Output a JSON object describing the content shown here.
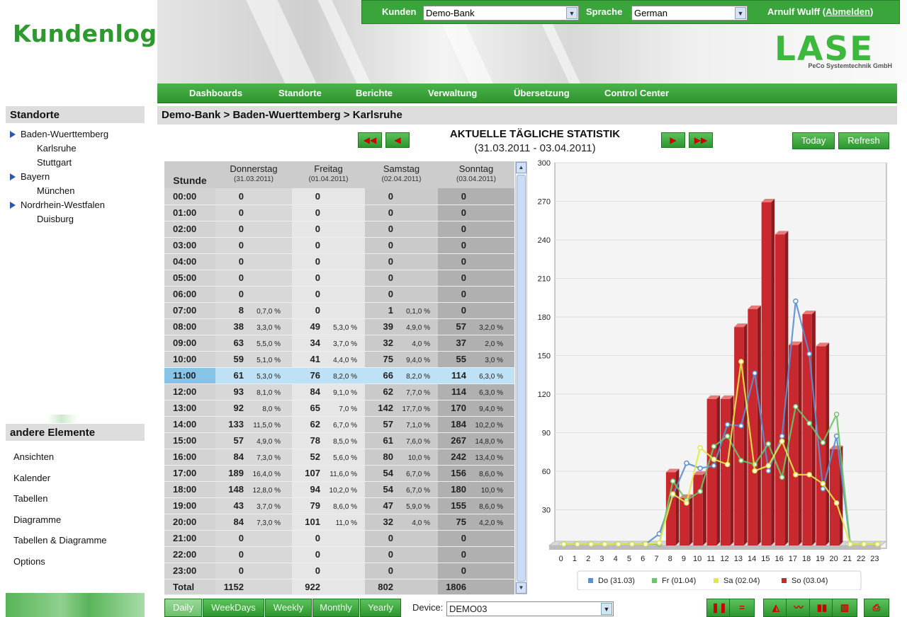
{
  "header": {
    "logo_text": "Kundenlogo",
    "brand": "LASE",
    "brand_sub": "PeCo Systemtechnik GmbH",
    "kunden_label": "Kunden",
    "kunden_value": "Demo-Bank",
    "sprache_label": "Sprache",
    "sprache_value": "German",
    "user_name": "Arnulf Wulff",
    "logout_label": "Abmelden",
    "paren_open": "(",
    "paren_close": ")"
  },
  "nav": [
    "Dashboards",
    "Standorte",
    "Berichte",
    "Verwaltung",
    "Übersetzung",
    "Control Center"
  ],
  "sidebar": {
    "standorte_title": "Standorte",
    "tree": [
      {
        "label": "Baden-Wuerttemberg",
        "level": 1
      },
      {
        "label": "Karlsruhe",
        "level": 2
      },
      {
        "label": "Stuttgart",
        "level": 2
      },
      {
        "label": "Bayern",
        "level": 1
      },
      {
        "label": "München",
        "level": 2
      },
      {
        "label": "Nordrhein-Westfalen",
        "level": 1
      },
      {
        "label": "Duisburg",
        "level": 2
      }
    ],
    "other_title": "andere Elemente",
    "other_items": [
      "Ansichten",
      "Kalender",
      "Tabellen",
      "Diagramme",
      "Tabellen & Diagramme",
      "Options"
    ]
  },
  "breadcrumb": "Demo-Bank > Baden-Wuerttemberg > Karlsruhe",
  "stats": {
    "title": "AKTUELLE TÄGLICHE STATISTIK",
    "subtitle": "(31.03.2011 - 03.04.2011)",
    "today_label": "Today",
    "refresh_label": "Refresh",
    "hour_header": "Stunde",
    "days": [
      {
        "name": "Donnerstag",
        "date": "(31.03.2011)"
      },
      {
        "name": "Freitag",
        "date": "(01.04.2011)"
      },
      {
        "name": "Samstag",
        "date": "(02.04.2011)"
      },
      {
        "name": "Sonntag",
        "date": "(03.04.2011)"
      }
    ],
    "selected_row": 11,
    "rows": [
      {
        "h": "00:00",
        "c": [
          [
            "0",
            ""
          ],
          [
            "0",
            ""
          ],
          [
            "0",
            ""
          ],
          [
            "0",
            ""
          ]
        ]
      },
      {
        "h": "01:00",
        "c": [
          [
            "0",
            ""
          ],
          [
            "0",
            ""
          ],
          [
            "0",
            ""
          ],
          [
            "0",
            ""
          ]
        ]
      },
      {
        "h": "02:00",
        "c": [
          [
            "0",
            ""
          ],
          [
            "0",
            ""
          ],
          [
            "0",
            ""
          ],
          [
            "0",
            ""
          ]
        ]
      },
      {
        "h": "03:00",
        "c": [
          [
            "0",
            ""
          ],
          [
            "0",
            ""
          ],
          [
            "0",
            ""
          ],
          [
            "0",
            ""
          ]
        ]
      },
      {
        "h": "04:00",
        "c": [
          [
            "0",
            ""
          ],
          [
            "0",
            ""
          ],
          [
            "0",
            ""
          ],
          [
            "0",
            ""
          ]
        ]
      },
      {
        "h": "05:00",
        "c": [
          [
            "0",
            ""
          ],
          [
            "0",
            ""
          ],
          [
            "0",
            ""
          ],
          [
            "0",
            ""
          ]
        ]
      },
      {
        "h": "06:00",
        "c": [
          [
            "0",
            ""
          ],
          [
            "0",
            ""
          ],
          [
            "0",
            ""
          ],
          [
            "0",
            ""
          ]
        ]
      },
      {
        "h": "07:00",
        "c": [
          [
            "8",
            "0,7,0 %"
          ],
          [
            "0",
            ""
          ],
          [
            "1",
            "0,1,0 %"
          ],
          [
            "0",
            ""
          ]
        ]
      },
      {
        "h": "08:00",
        "c": [
          [
            "38",
            "3,3,0 %"
          ],
          [
            "49",
            "5,3,0 %"
          ],
          [
            "39",
            "4,9,0 %"
          ],
          [
            "57",
            "3,2,0 %"
          ]
        ]
      },
      {
        "h": "09:00",
        "c": [
          [
            "63",
            "5,5,0 %"
          ],
          [
            "34",
            "3,7,0 %"
          ],
          [
            "32",
            "4,0 %"
          ],
          [
            "37",
            "2,0 %"
          ]
        ]
      },
      {
        "h": "10:00",
        "c": [
          [
            "59",
            "5,1,0 %"
          ],
          [
            "41",
            "4,4,0 %"
          ],
          [
            "75",
            "9,4,0 %"
          ],
          [
            "55",
            "3,0 %"
          ]
        ]
      },
      {
        "h": "11:00",
        "c": [
          [
            "61",
            "5,3,0 %"
          ],
          [
            "76",
            "8,2,0 %"
          ],
          [
            "66",
            "8,2,0 %"
          ],
          [
            "114",
            "6,3,0 %"
          ]
        ]
      },
      {
        "h": "12:00",
        "c": [
          [
            "93",
            "8,1,0 %"
          ],
          [
            "84",
            "9,1,0 %"
          ],
          [
            "62",
            "7,7,0 %"
          ],
          [
            "114",
            "6,3,0 %"
          ]
        ]
      },
      {
        "h": "13:00",
        "c": [
          [
            "92",
            "8,0 %"
          ],
          [
            "65",
            "7,0 %"
          ],
          [
            "142",
            "17,7,0 %"
          ],
          [
            "170",
            "9,4,0 %"
          ]
        ]
      },
      {
        "h": "14:00",
        "c": [
          [
            "133",
            "11,5,0 %"
          ],
          [
            "62",
            "6,7,0 %"
          ],
          [
            "57",
            "7,1,0 %"
          ],
          [
            "184",
            "10,2,0 %"
          ]
        ]
      },
      {
        "h": "15:00",
        "c": [
          [
            "57",
            "4,9,0 %"
          ],
          [
            "78",
            "8,5,0 %"
          ],
          [
            "61",
            "7,6,0 %"
          ],
          [
            "267",
            "14,8,0 %"
          ]
        ]
      },
      {
        "h": "16:00",
        "c": [
          [
            "84",
            "7,3,0 %"
          ],
          [
            "52",
            "5,6,0 %"
          ],
          [
            "80",
            "10,0 %"
          ],
          [
            "242",
            "13,4,0 %"
          ]
        ]
      },
      {
        "h": "17:00",
        "c": [
          [
            "189",
            "16,4,0 %"
          ],
          [
            "107",
            "11,6,0 %"
          ],
          [
            "54",
            "6,7,0 %"
          ],
          [
            "156",
            "8,6,0 %"
          ]
        ]
      },
      {
        "h": "18:00",
        "c": [
          [
            "148",
            "12,8,0 %"
          ],
          [
            "94",
            "10,2,0 %"
          ],
          [
            "54",
            "6,7,0 %"
          ],
          [
            "180",
            "10,0 %"
          ]
        ]
      },
      {
        "h": "19:00",
        "c": [
          [
            "43",
            "3,7,0 %"
          ],
          [
            "79",
            "8,6,0 %"
          ],
          [
            "47",
            "5,9,0 %"
          ],
          [
            "155",
            "8,6,0 %"
          ]
        ]
      },
      {
        "h": "20:00",
        "c": [
          [
            "84",
            "7,3,0 %"
          ],
          [
            "101",
            "11,0 %"
          ],
          [
            "32",
            "4,0 %"
          ],
          [
            "75",
            "4,2,0 %"
          ]
        ]
      },
      {
        "h": "21:00",
        "c": [
          [
            "0",
            ""
          ],
          [
            "0",
            ""
          ],
          [
            "0",
            ""
          ],
          [
            "0",
            ""
          ]
        ]
      },
      {
        "h": "22:00",
        "c": [
          [
            "0",
            ""
          ],
          [
            "0",
            ""
          ],
          [
            "0",
            ""
          ],
          [
            "0",
            ""
          ]
        ]
      },
      {
        "h": "23:00",
        "c": [
          [
            "0",
            ""
          ],
          [
            "0",
            ""
          ],
          [
            "0",
            ""
          ],
          [
            "0",
            ""
          ]
        ]
      }
    ],
    "total_label": "Total",
    "totals": [
      "1152",
      "922",
      "802",
      "1806"
    ]
  },
  "bottom": {
    "tabs": [
      "Daily",
      "WeekDays",
      "Weekly",
      "Monthly",
      "Yearly"
    ],
    "active_tab": 0,
    "device_label": "Device:",
    "device_value": "DEMO03"
  },
  "colors": {
    "green": "#3aa53a",
    "do": "#5b8fd6",
    "fr": "#6cc46c",
    "sa": "#e3e84a",
    "so": "#c8282e"
  },
  "chart_data": {
    "type": "bar",
    "x": [
      0,
      1,
      2,
      3,
      4,
      5,
      6,
      7,
      8,
      9,
      10,
      11,
      12,
      13,
      14,
      15,
      16,
      17,
      18,
      19,
      20,
      21,
      22,
      23
    ],
    "ylim": [
      0,
      300
    ],
    "yticks": [
      30,
      60,
      90,
      120,
      150,
      180,
      210,
      240,
      270,
      300
    ],
    "grid": true,
    "legend_position": "bottom",
    "series": [
      {
        "name": "Do (31.03)",
        "kind": "line",
        "color": "#5b8fd6",
        "values": [
          0,
          0,
          0,
          0,
          0,
          0,
          0,
          8,
          38,
          63,
          59,
          61,
          93,
          92,
          133,
          57,
          84,
          189,
          148,
          43,
          84,
          0,
          0,
          0
        ]
      },
      {
        "name": "Fr (01.04)",
        "kind": "line",
        "color": "#6cc46c",
        "values": [
          0,
          0,
          0,
          0,
          0,
          0,
          0,
          0,
          49,
          34,
          41,
          76,
          84,
          65,
          62,
          78,
          52,
          107,
          94,
          79,
          101,
          0,
          0,
          0
        ]
      },
      {
        "name": "Sa (02.04)",
        "kind": "line",
        "color": "#e3e84a",
        "values": [
          0,
          0,
          0,
          0,
          0,
          0,
          0,
          1,
          39,
          32,
          75,
          66,
          62,
          142,
          57,
          61,
          80,
          54,
          54,
          47,
          32,
          0,
          0,
          0
        ]
      },
      {
        "name": "So (03.04)",
        "kind": "bar",
        "color": "#c8282e",
        "values": [
          0,
          0,
          0,
          0,
          0,
          0,
          0,
          0,
          57,
          37,
          55,
          114,
          114,
          170,
          184,
          267,
          242,
          156,
          180,
          155,
          75,
          0,
          0,
          0
        ]
      }
    ]
  }
}
